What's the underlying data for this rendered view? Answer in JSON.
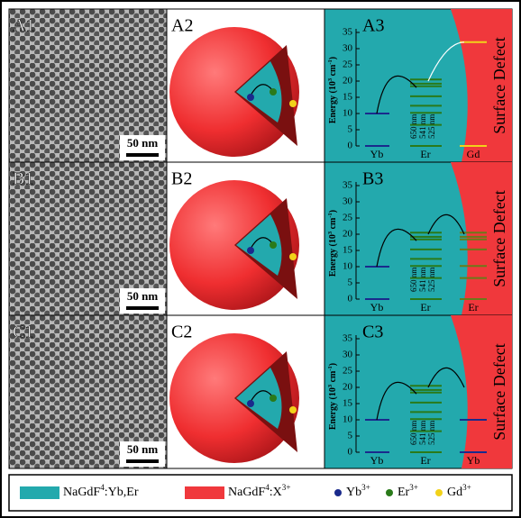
{
  "panels": [
    {
      "tem": {
        "label": "A1",
        "scale": "50 nm"
      },
      "schematic": {
        "label": "A2"
      },
      "energy": {
        "label": "A3",
        "axis_label": [
          "Energy (10",
          "3",
          " cm",
          "-1",
          ")"
        ],
        "yticks": [
          0,
          5,
          10,
          15,
          20,
          25,
          30,
          35
        ],
        "wavelengths": [
          "650 nm",
          "541 nm",
          "525 nm"
        ],
        "ions": [
          "Yb",
          "Er",
          "Gd"
        ],
        "defect": "Surface Defect"
      }
    },
    {
      "tem": {
        "label": "B1",
        "scale": "50 nm"
      },
      "schematic": {
        "label": "B2"
      },
      "energy": {
        "label": "B3",
        "axis_label": [
          "Energy (10",
          "3",
          " cm",
          "-1",
          ")"
        ],
        "yticks": [
          0,
          5,
          10,
          15,
          20,
          25,
          30,
          35
        ],
        "wavelengths": [
          "650 nm",
          "541 nm",
          "525 nm"
        ],
        "ions": [
          "Yb",
          "Er",
          "Er"
        ],
        "defect": "Surface Defect"
      }
    },
    {
      "tem": {
        "label": "C1",
        "scale": "50 nm"
      },
      "schematic": {
        "label": "C2"
      },
      "energy": {
        "label": "C3",
        "axis_label": [
          "Energy (10",
          "3",
          " cm",
          "-1",
          ")"
        ],
        "yticks": [
          0,
          5,
          10,
          15,
          20,
          25,
          30,
          35
        ],
        "wavelengths": [
          "650 nm",
          "541 nm",
          "525 nm"
        ],
        "ions": [
          "Yb",
          "Er",
          "Yb"
        ],
        "defect": "Surface Defect"
      }
    }
  ],
  "legend": [
    {
      "text": [
        "NaGdF",
        "4",
        ":Yb,Er"
      ]
    },
    {
      "text": [
        "NaGdF",
        "4",
        ":X",
        "3+"
      ]
    },
    {
      "text": [
        "Yb",
        "3+"
      ]
    },
    {
      "text": [
        "Er",
        "3+"
      ]
    },
    {
      "text": [
        "Gd",
        "3+"
      ]
    }
  ]
}
